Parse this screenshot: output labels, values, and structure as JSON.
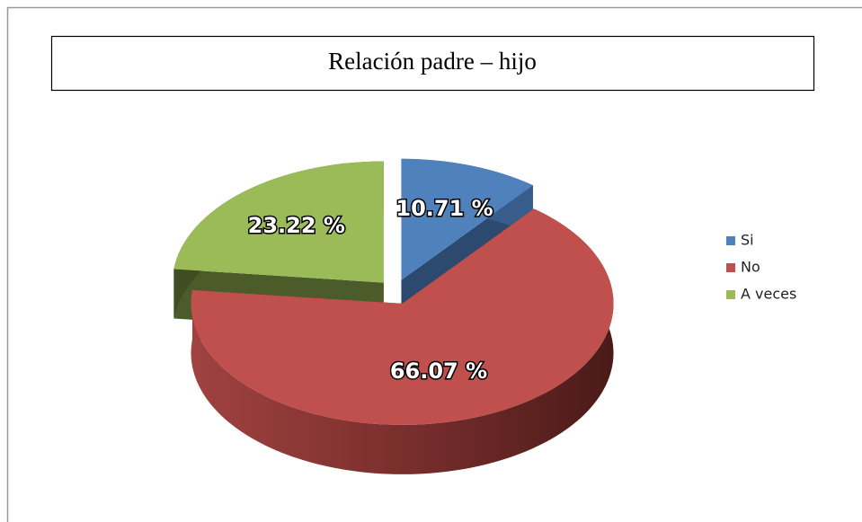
{
  "chart_data": {
    "type": "pie",
    "title": "Relación padre – hijo",
    "categories": [
      "Si",
      "No",
      "A veces"
    ],
    "values": [
      10.71,
      66.07,
      23.22
    ],
    "value_labels": [
      "10.71 %",
      "66.07 %",
      "23.22 %"
    ],
    "colors": [
      "#4f81bd",
      "#c0504d",
      "#9bbb59"
    ],
    "legend": "right"
  }
}
